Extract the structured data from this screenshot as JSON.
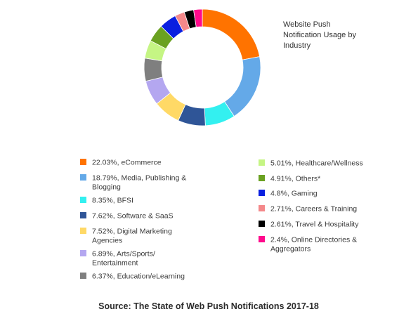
{
  "chart_data": {
    "type": "pie",
    "donut": true,
    "title": [
      "Website Push",
      "Notification Usage by",
      "Industry"
    ],
    "source": "Source: The State of Web Push Notifications 2017-18",
    "slices": [
      {
        "value": 22.03,
        "lines": [
          "22.03%, eCommerce"
        ],
        "color": "#ff7300"
      },
      {
        "value": 18.79,
        "lines": [
          "18.79%, Media, Publishing &",
          "Blogging"
        ],
        "color": "#64a9e8"
      },
      {
        "value": 8.35,
        "lines": [
          "8.35%, BFSI"
        ],
        "color": "#33f0f0"
      },
      {
        "value": 7.62,
        "lines": [
          "7.62%, Software & SaaS"
        ],
        "color": "#2f5597"
      },
      {
        "value": 7.52,
        "lines": [
          "7.52%, Digital Marketing",
          "Agencies"
        ],
        "color": "#ffd966"
      },
      {
        "value": 6.89,
        "lines": [
          "6.89%, Arts/Sports/",
          "Entertainment"
        ],
        "color": "#b4a7f0"
      },
      {
        "value": 6.37,
        "lines": [
          "6.37%, Education/eLearning"
        ],
        "color": "#7f7f7f"
      },
      {
        "value": 5.01,
        "lines": [
          "5.01%, Healthcare/Wellness"
        ],
        "color": "#c5f584"
      },
      {
        "value": 4.91,
        "lines": [
          "4.91%, Others*"
        ],
        "color": "#6aa121"
      },
      {
        "value": 4.8,
        "lines": [
          "4.8%, Gaming"
        ],
        "color": "#0a1fe0"
      },
      {
        "value": 2.71,
        "lines": [
          "2.71%, Careers & Training"
        ],
        "color": "#f4888a"
      },
      {
        "value": 2.61,
        "lines": [
          "2.61%, Travel & Hospitality"
        ],
        "color": "#000000"
      },
      {
        "value": 2.4,
        "lines": [
          "2.4%, Online Directories &",
          "Aggregators"
        ],
        "color": "#ff0a8c"
      }
    ]
  }
}
